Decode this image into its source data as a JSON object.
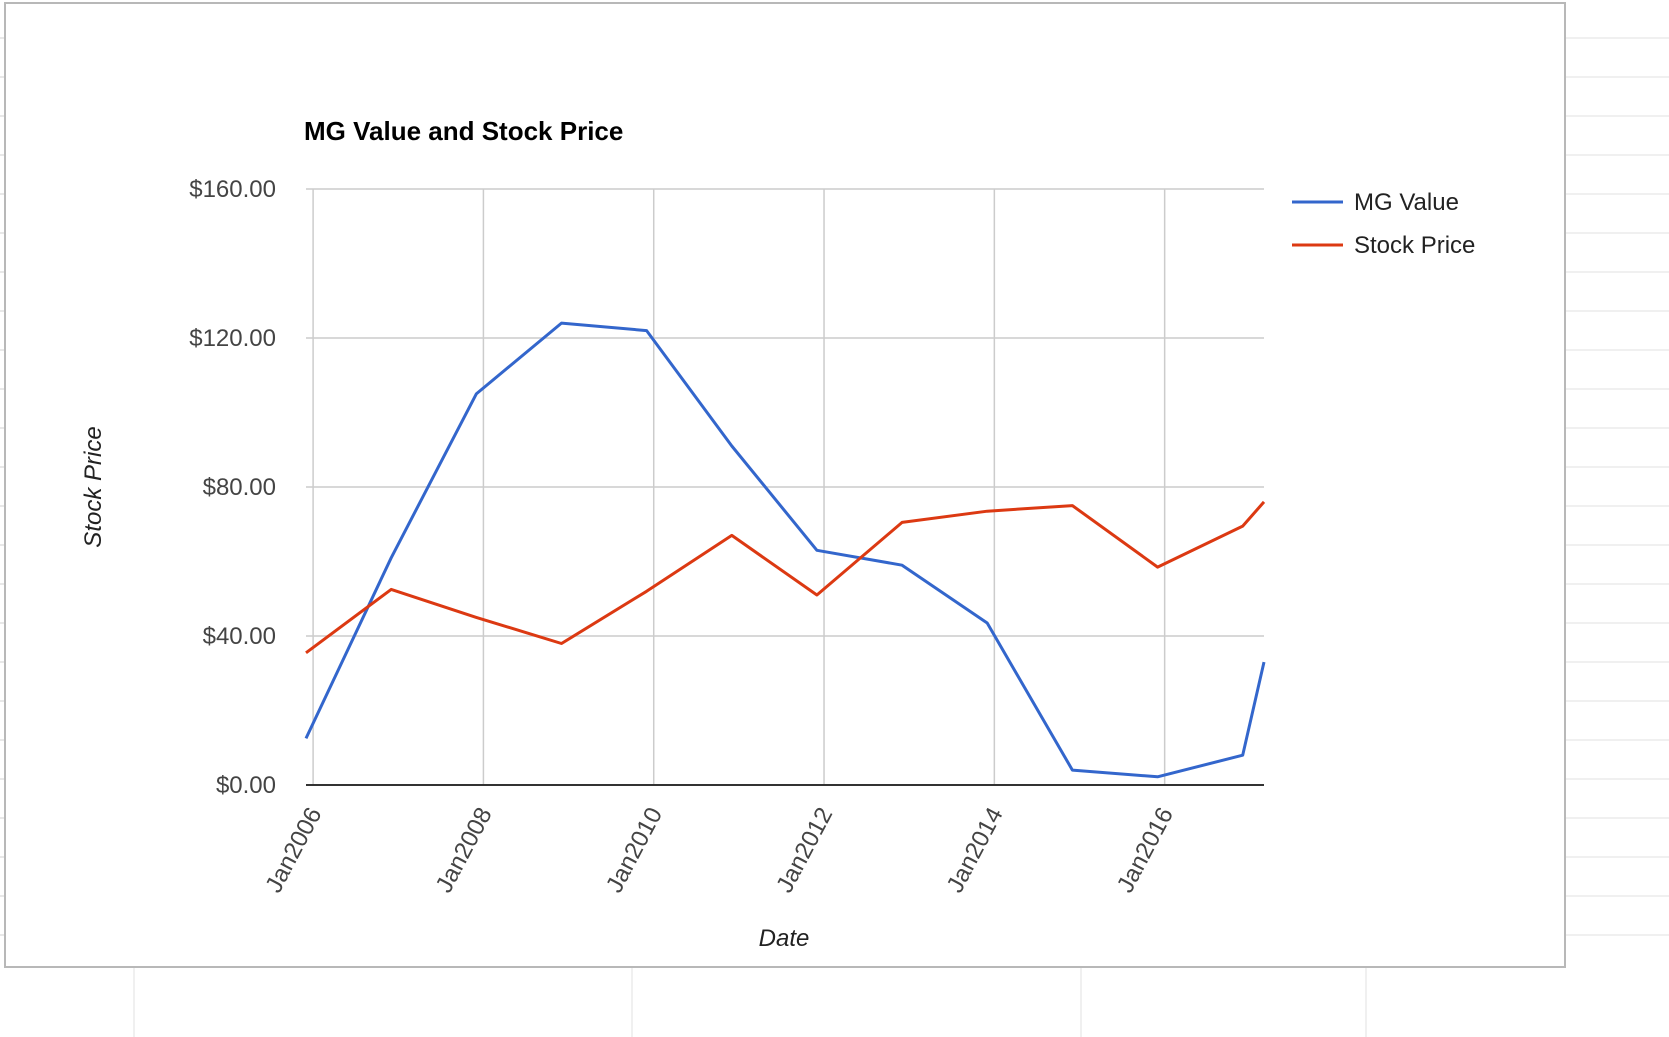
{
  "chart_data": {
    "type": "line",
    "title": "MG Value and Stock Price",
    "xlabel": "Date",
    "ylabel": "Stock Price",
    "x_ticks": [
      "Jan2006",
      "Jan2008",
      "Jan2010",
      "Jan2012",
      "Jan2014",
      "Jan2016"
    ],
    "y_ticks": [
      "$0.00",
      "$40.00",
      "$80.00",
      "$120.00",
      "$160.00"
    ],
    "ylim": [
      0,
      160
    ],
    "xlim": [
      "2005-12",
      "2017-03"
    ],
    "grid": true,
    "legend_position": "right",
    "series": [
      {
        "name": "MG Value",
        "color": "#3366cc",
        "points": [
          {
            "x": "2005-12",
            "y": 12.5
          },
          {
            "x": "2006-12",
            "y": 61
          },
          {
            "x": "2007-12",
            "y": 105
          },
          {
            "x": "2008-12",
            "y": 124
          },
          {
            "x": "2009-12",
            "y": 122
          },
          {
            "x": "2010-12",
            "y": 91
          },
          {
            "x": "2011-12",
            "y": 63
          },
          {
            "x": "2012-12",
            "y": 59
          },
          {
            "x": "2013-12",
            "y": 43.5
          },
          {
            "x": "2014-12",
            "y": 4
          },
          {
            "x": "2015-12",
            "y": 2.2
          },
          {
            "x": "2016-12",
            "y": 8
          },
          {
            "x": "2017-03",
            "y": 33
          }
        ]
      },
      {
        "name": "Stock Price",
        "color": "#dc3912",
        "points": [
          {
            "x": "2005-12",
            "y": 35.5
          },
          {
            "x": "2006-12",
            "y": 52.5
          },
          {
            "x": "2007-12",
            "y": 45
          },
          {
            "x": "2008-12",
            "y": 38
          },
          {
            "x": "2009-12",
            "y": 52
          },
          {
            "x": "2010-12",
            "y": 67
          },
          {
            "x": "2011-12",
            "y": 51
          },
          {
            "x": "2012-12",
            "y": 70.5
          },
          {
            "x": "2013-12",
            "y": 73.5
          },
          {
            "x": "2014-12",
            "y": 75
          },
          {
            "x": "2015-12",
            "y": 58.5
          },
          {
            "x": "2016-12",
            "y": 69.5
          },
          {
            "x": "2017-03",
            "y": 76
          }
        ]
      }
    ]
  }
}
